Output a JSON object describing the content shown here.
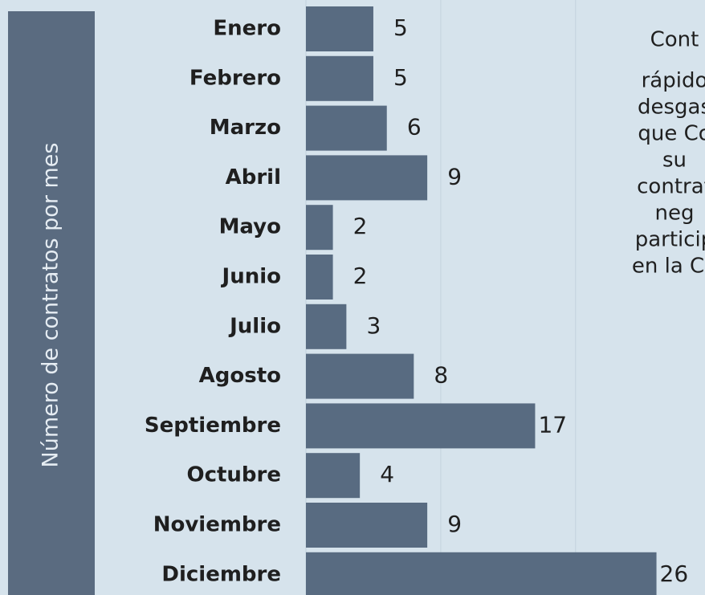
{
  "chart_data": {
    "type": "bar",
    "orientation": "horizontal",
    "axis_label": "Número de contratos por mes",
    "categories": [
      "Enero",
      "Febrero",
      "Marzo",
      "Abril",
      "Mayo",
      "Junio",
      "Julio",
      "Agosto",
      "Septiembre",
      "Octubre",
      "Noviembre",
      "Diciembre"
    ],
    "values": [
      5,
      5,
      6,
      9,
      2,
      2,
      3,
      8,
      17,
      4,
      9,
      26
    ],
    "color": "#586b81",
    "xlim": [
      0,
      29.6
    ],
    "xticks": [
      0,
      10,
      20
    ],
    "grid": true,
    "annotation": [
      "Cont",
      "rápido",
      "desgas",
      "que Co",
      "su",
      "contrat",
      "neg",
      "particip",
      "en la Cá"
    ]
  }
}
